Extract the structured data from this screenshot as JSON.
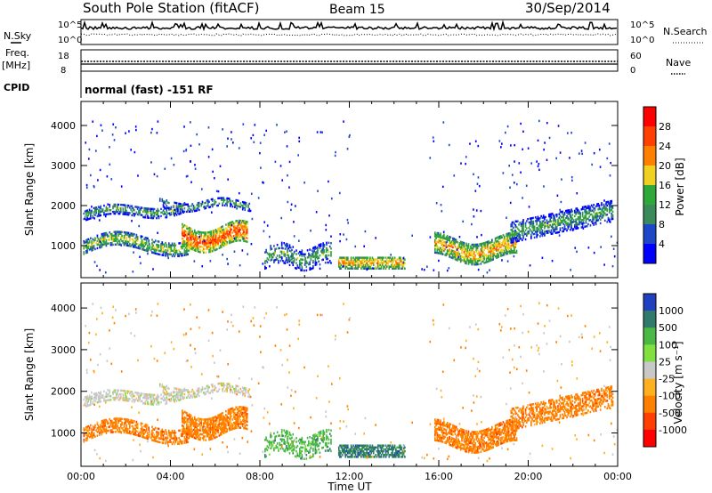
{
  "header": {
    "station": "South Pole Station (fitACF)",
    "beam": "Beam 15",
    "date": "30/Sep/2014"
  },
  "noise_panel": {
    "left_label": "N.Sky",
    "right_label": "N.Search",
    "ticks_left": [
      "10^5",
      "10^0"
    ],
    "ticks_right": [
      "10^5",
      "10^0"
    ]
  },
  "freq_panel": {
    "left_label": "Freq.",
    "left_unit": "[MHz]",
    "right_label": "Nave",
    "ticks_left": [
      "18",
      "8"
    ],
    "ticks_right": [
      "60",
      "0"
    ]
  },
  "cpid_panel": {
    "label": "CPID",
    "text": "normal (fast) -151 RF"
  },
  "colors": {
    "power": [
      "#0000ff",
      "#1e46c8",
      "#3a8a5a",
      "#2fa83a",
      "#f0d020",
      "#ff8000",
      "#ff4000",
      "#ff0000"
    ],
    "velocity": [
      "#2040c0",
      "#2f7a6a",
      "#4ab844",
      "#80e040",
      "#c8c8c8",
      "#ffb020",
      "#ff8000",
      "#ff4000",
      "#ff0000"
    ]
  },
  "chart_data": [
    {
      "type": "heatmap",
      "name": "power-panel",
      "xlabel": "",
      "ylabel": "Slant Range [km]",
      "xlim": [
        0,
        24
      ],
      "ylim": [
        200,
        4600
      ],
      "y_ticks": [
        "1000",
        "2000",
        "3000",
        "4000"
      ],
      "colorbar": {
        "label": "Power [dB]",
        "ticks": [
          "4",
          "8",
          "12",
          "16",
          "20",
          "24",
          "28"
        ],
        "range": [
          0,
          32
        ]
      }
    },
    {
      "type": "heatmap",
      "name": "velocity-panel",
      "xlabel": "Time UT",
      "ylabel": "Slant Range [km]",
      "xlim": [
        0,
        24
      ],
      "ylim": [
        200,
        4600
      ],
      "x_ticks": [
        "00:00",
        "04:00",
        "08:00",
        "12:00",
        "16:00",
        "20:00",
        "00:00"
      ],
      "y_ticks": [
        "1000",
        "2000",
        "3000",
        "4000"
      ],
      "colorbar": {
        "label": "Velocity [m s⁻¹]",
        "ticks": [
          "1000",
          "500",
          "100",
          "25",
          "-25",
          "-100",
          "-500",
          "-1000"
        ]
      }
    }
  ]
}
